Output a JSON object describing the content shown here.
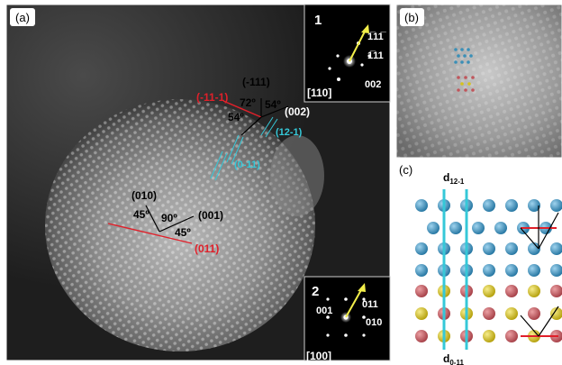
{
  "panels": {
    "a": {
      "label": "(a)",
      "annotations": {
        "m111": "(-111)",
        "m11m1": "(-11-1)",
        "p002": "(002)",
        "p12m1": "(12-1)",
        "p0m11": "(0-11)",
        "p010": "(010)",
        "p001": "(001)",
        "p011": "(011)",
        "ang72": "72º",
        "ang54a": "54º",
        "ang54b": "54º",
        "ang45a": "45º",
        "ang90": "90º",
        "ang45b": "45º"
      },
      "inset1": {
        "number": "1",
        "zone": "[110]",
        "spot_a": "1̅11̅",
        "spot_b": "1̅11",
        "spot_c": "002"
      },
      "inset2": {
        "number": "2",
        "zone": "[100]",
        "spot_a": "001",
        "spot_b": "011",
        "spot_c": "010"
      }
    },
    "b": {
      "label": "(b)"
    },
    "c": {
      "label": "(c)",
      "top_label": "d12-1",
      "bottom_label": "d0-11"
    }
  },
  "colors": {
    "red_annotation": "#e0202a",
    "cyan_annotation": "#35c8d8",
    "white_annotation": "#ffffff",
    "atom_blue": "#3a8fb7",
    "atom_red": "#c0565c",
    "atom_yellow": "#d6c21c",
    "arrow_yellow": "#f2ee4a"
  }
}
